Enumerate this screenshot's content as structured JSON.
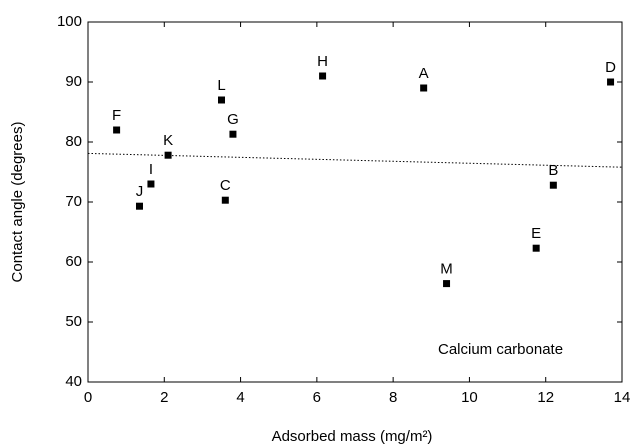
{
  "chart_data": {
    "type": "scatter",
    "x_label": "Adsorbed mass (mg/m²)",
    "y_label": "Contact angle (degrees)",
    "annotation": "Calcium carbonate",
    "point_labels": [
      "F",
      "J",
      "I",
      "K",
      "L",
      "C",
      "G",
      "H",
      "A",
      "M",
      "E",
      "B",
      "D"
    ],
    "x": [
      0.75,
      1.35,
      1.65,
      2.1,
      3.5,
      3.6,
      3.8,
      6.15,
      8.8,
      9.4,
      11.75,
      12.2,
      13.7
    ],
    "values": [
      82,
      69.3,
      73,
      77.8,
      87,
      70.3,
      81.3,
      91,
      89,
      56.4,
      62.3,
      72.8,
      90
    ],
    "color": "#000000",
    "trend": {
      "x": [
        0,
        14
      ],
      "y": [
        78.1,
        75.8
      ]
    },
    "xlim": [
      0,
      14
    ],
    "xticks": [
      0,
      2,
      4,
      6,
      8,
      10,
      12,
      14
    ],
    "ylim": [
      40,
      100
    ],
    "yticks": [
      40,
      50,
      60,
      70,
      80,
      90,
      100
    ]
  }
}
